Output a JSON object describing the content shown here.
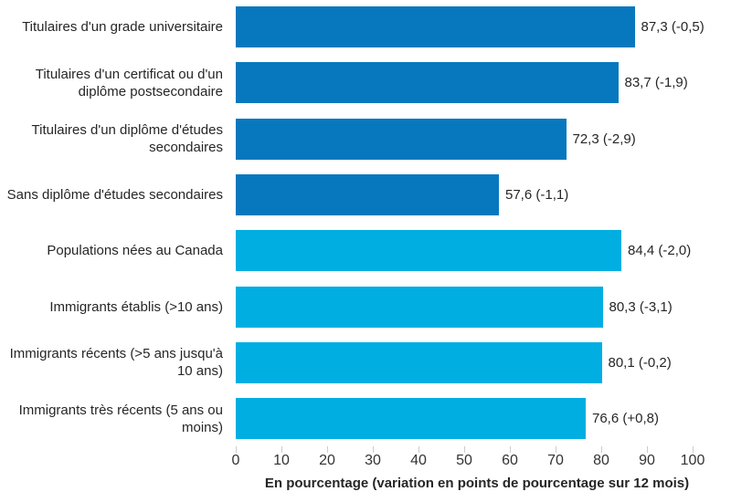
{
  "chart_data": {
    "type": "bar",
    "orientation": "horizontal",
    "categories": [
      "Titulaires d'un grade universitaire",
      "Titulaires d'un certificat ou d'un diplôme postsecondaire",
      "Titulaires d'un diplôme d'études secondaires",
      "Sans diplôme d'études secondaires",
      "Populations nées au Canada",
      "Immigrants établis (>10 ans)",
      "Immigrants récents (>5 ans jusqu'à 10 ans)",
      "Immigrants très récents (5 ans ou moins)"
    ],
    "values": [
      87.3,
      83.7,
      72.3,
      57.6,
      84.4,
      80.3,
      80.1,
      76.6
    ],
    "variations_12_months": [
      -0.5,
      -1.9,
      -2.9,
      -1.1,
      -2.0,
      -3.1,
      -0.2,
      0.8
    ],
    "value_labels": [
      "87,3 (-0,5)",
      "83,7 (-1,9)",
      "72,3 (-2,9)",
      "57,6 (-1,1)",
      "84,4 (-2,0)",
      "80,3 (-3,1)",
      "80,1 (-0,2)",
      "76,6 (+0,8)"
    ],
    "bar_colors": [
      "#0878BE",
      "#0878BE",
      "#0878BE",
      "#0878BE",
      "#00AEE2",
      "#00AEE2",
      "#00AEE2",
      "#00AEE2"
    ],
    "xlabel": "En pourcentage (variation en points de pourcentage sur 12 mois)",
    "xlim": [
      0,
      100
    ],
    "x_ticks": [
      0,
      10,
      20,
      30,
      40,
      50,
      60,
      70,
      80,
      90,
      100
    ],
    "grid": false,
    "legend": false
  },
  "colors": {
    "bar_group_education": "#0878BE",
    "bar_group_immigration": "#00AEE2",
    "tick_mark": "#cccccc",
    "text": "#262626"
  }
}
